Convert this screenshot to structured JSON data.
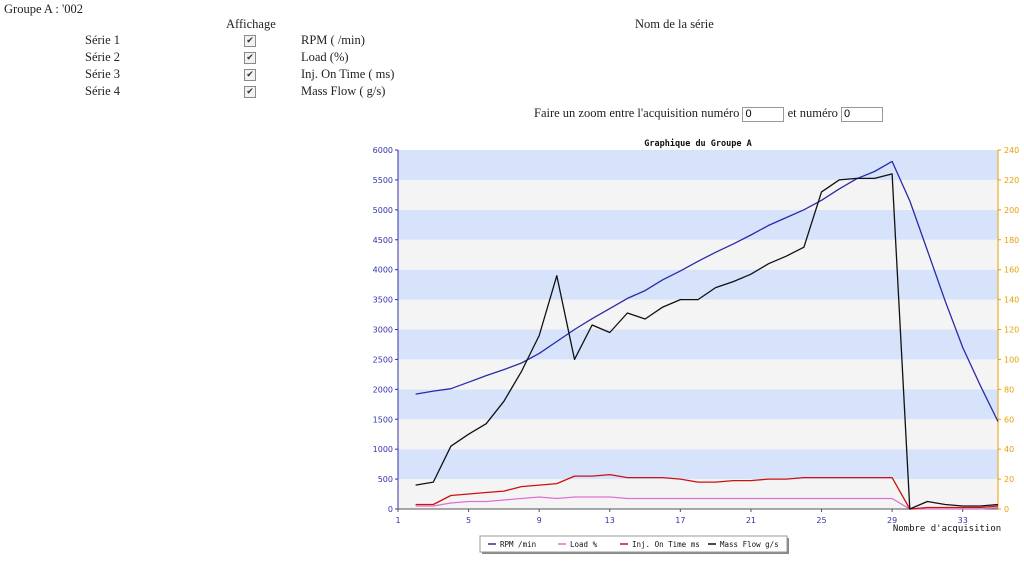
{
  "header": {
    "group_title": "Groupe A : '002",
    "col_display": "Affichage",
    "col_name": "Nom de la série"
  },
  "series_rows": [
    {
      "label": "Série 1",
      "checked": true,
      "name": "RPM ( /min)"
    },
    {
      "label": "Série 2",
      "checked": true,
      "name": "Load (%)"
    },
    {
      "label": "Série 3",
      "checked": true,
      "name": "Inj. On Time ( ms)"
    },
    {
      "label": "Série 4",
      "checked": true,
      "name": "Mass Flow ( g/s)"
    }
  ],
  "zoom": {
    "text_before": "Faire un zoom entre l'acquisition numéro",
    "from_value": "0",
    "text_middle": "et numéro",
    "to_value": "0"
  },
  "chart_data": {
    "type": "line",
    "title": "Graphique du Groupe A",
    "xlabel": "Nombre d'acquisition",
    "xlim": [
      1,
      35
    ],
    "x_ticks": [
      1,
      5,
      9,
      13,
      17,
      21,
      25,
      29,
      33
    ],
    "ylim_left": [
      0,
      6000
    ],
    "y_ticks_left": [
      0,
      500,
      1000,
      1500,
      2000,
      2500,
      3000,
      3500,
      4000,
      4500,
      5000,
      5500,
      6000
    ],
    "ylim_right": [
      0,
      240
    ],
    "y_ticks_right": [
      0,
      20,
      40,
      60,
      80,
      100,
      120,
      140,
      160,
      180,
      200,
      220,
      240
    ],
    "colors": {
      "left_axis": "#3333aa",
      "right_axis": "#e8a000",
      "band_a": "#d7e3fa",
      "band_b": "#f4f4f4"
    },
    "legend_position": "bottom-center",
    "series": [
      {
        "name": "RPM  /min",
        "axis": "left",
        "color": "#2a2aa8",
        "x": [
          2,
          3,
          4,
          5,
          6,
          7,
          8,
          9,
          10,
          11,
          12,
          13,
          14,
          15,
          16,
          17,
          18,
          19,
          20,
          21,
          22,
          23,
          24,
          25,
          26,
          27,
          28,
          29,
          30,
          31,
          32,
          33,
          34,
          35
        ],
        "values": [
          1920,
          1970,
          2010,
          2120,
          2230,
          2330,
          2440,
          2600,
          2800,
          3000,
          3180,
          3350,
          3520,
          3650,
          3830,
          3980,
          4140,
          4290,
          4430,
          4580,
          4740,
          4870,
          5000,
          5160,
          5350,
          5520,
          5640,
          5810,
          5150,
          4320,
          3480,
          2700,
          2060,
          1460
        ]
      },
      {
        "name": "Load %",
        "axis": "right",
        "color": "#e070d0",
        "x": [
          2,
          3,
          4,
          5,
          6,
          7,
          8,
          9,
          10,
          11,
          12,
          13,
          14,
          15,
          16,
          17,
          18,
          19,
          20,
          21,
          22,
          23,
          24,
          25,
          26,
          27,
          28,
          29,
          30,
          31,
          32,
          33,
          34,
          35
        ],
        "values": [
          2,
          2,
          4,
          5,
          5,
          6,
          7,
          8,
          7,
          8,
          8,
          8,
          7,
          7,
          7,
          7,
          7,
          7,
          7,
          7,
          7,
          7,
          7,
          7,
          7,
          7,
          7,
          7,
          0,
          0,
          0,
          0,
          0,
          1
        ]
      },
      {
        "name": "Inj. On Time  ms",
        "axis": "right",
        "color": "#cc1111",
        "x": [
          2,
          3,
          4,
          5,
          6,
          7,
          8,
          9,
          10,
          11,
          12,
          13,
          14,
          15,
          16,
          17,
          18,
          19,
          20,
          21,
          22,
          23,
          24,
          25,
          26,
          27,
          28,
          29,
          30,
          31,
          32,
          33,
          34,
          35
        ],
        "values": [
          3,
          3,
          9,
          10,
          11,
          12,
          15,
          16,
          17,
          22,
          22,
          23,
          21,
          21,
          21,
          20,
          18,
          18,
          19,
          19,
          20,
          20,
          21,
          21,
          21,
          21,
          21,
          21,
          0,
          1,
          1,
          1,
          1,
          2
        ]
      },
      {
        "name": "Mass Flow  g/s",
        "axis": "right",
        "color": "#111111",
        "x": [
          2,
          3,
          4,
          5,
          6,
          7,
          8,
          9,
          10,
          11,
          12,
          13,
          14,
          15,
          16,
          17,
          18,
          19,
          20,
          21,
          22,
          23,
          24,
          25,
          26,
          27,
          28,
          29,
          30,
          31,
          32,
          33,
          34,
          35
        ],
        "values": [
          16,
          18,
          42,
          50,
          57,
          72,
          92,
          116,
          156,
          100,
          123,
          118,
          131,
          127,
          135,
          140,
          140,
          148,
          152,
          157,
          164,
          169,
          175,
          212,
          220,
          221,
          221,
          224,
          0,
          5,
          3,
          2,
          2,
          3
        ]
      }
    ]
  }
}
